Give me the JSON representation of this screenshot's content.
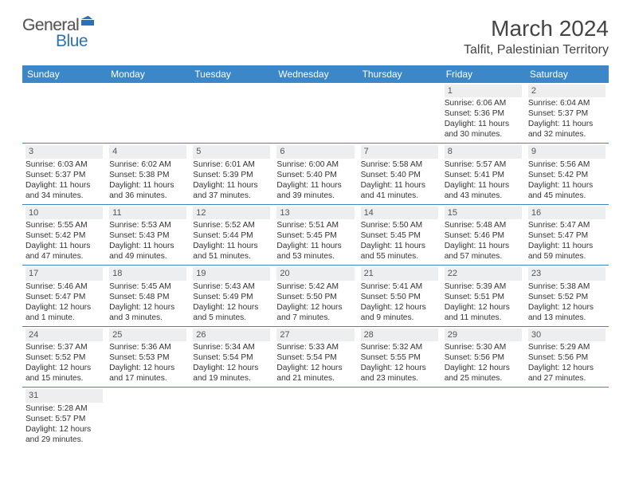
{
  "logo": {
    "text1": "General",
    "text2": "Blue"
  },
  "title": "March 2024",
  "location": "Talfit, Palestinian Territory",
  "headers": [
    "Sunday",
    "Monday",
    "Tuesday",
    "Wednesday",
    "Thursday",
    "Friday",
    "Saturday"
  ],
  "colors": {
    "header_bg": "#3b87c8",
    "header_text": "#ffffff",
    "daynum_bg": "#eceeef",
    "border": "#3b87c8",
    "logo_blue": "#2a72b5",
    "logo_gray": "#5a5a5a"
  },
  "weeks": [
    [
      null,
      null,
      null,
      null,
      null,
      {
        "n": "1",
        "sr": "Sunrise: 6:06 AM",
        "ss": "Sunset: 5:36 PM",
        "dl": "Daylight: 11 hours and 30 minutes."
      },
      {
        "n": "2",
        "sr": "Sunrise: 6:04 AM",
        "ss": "Sunset: 5:37 PM",
        "dl": "Daylight: 11 hours and 32 minutes."
      }
    ],
    [
      {
        "n": "3",
        "sr": "Sunrise: 6:03 AM",
        "ss": "Sunset: 5:37 PM",
        "dl": "Daylight: 11 hours and 34 minutes."
      },
      {
        "n": "4",
        "sr": "Sunrise: 6:02 AM",
        "ss": "Sunset: 5:38 PM",
        "dl": "Daylight: 11 hours and 36 minutes."
      },
      {
        "n": "5",
        "sr": "Sunrise: 6:01 AM",
        "ss": "Sunset: 5:39 PM",
        "dl": "Daylight: 11 hours and 37 minutes."
      },
      {
        "n": "6",
        "sr": "Sunrise: 6:00 AM",
        "ss": "Sunset: 5:40 PM",
        "dl": "Daylight: 11 hours and 39 minutes."
      },
      {
        "n": "7",
        "sr": "Sunrise: 5:58 AM",
        "ss": "Sunset: 5:40 PM",
        "dl": "Daylight: 11 hours and 41 minutes."
      },
      {
        "n": "8",
        "sr": "Sunrise: 5:57 AM",
        "ss": "Sunset: 5:41 PM",
        "dl": "Daylight: 11 hours and 43 minutes."
      },
      {
        "n": "9",
        "sr": "Sunrise: 5:56 AM",
        "ss": "Sunset: 5:42 PM",
        "dl": "Daylight: 11 hours and 45 minutes."
      }
    ],
    [
      {
        "n": "10",
        "sr": "Sunrise: 5:55 AM",
        "ss": "Sunset: 5:42 PM",
        "dl": "Daylight: 11 hours and 47 minutes."
      },
      {
        "n": "11",
        "sr": "Sunrise: 5:53 AM",
        "ss": "Sunset: 5:43 PM",
        "dl": "Daylight: 11 hours and 49 minutes."
      },
      {
        "n": "12",
        "sr": "Sunrise: 5:52 AM",
        "ss": "Sunset: 5:44 PM",
        "dl": "Daylight: 11 hours and 51 minutes."
      },
      {
        "n": "13",
        "sr": "Sunrise: 5:51 AM",
        "ss": "Sunset: 5:45 PM",
        "dl": "Daylight: 11 hours and 53 minutes."
      },
      {
        "n": "14",
        "sr": "Sunrise: 5:50 AM",
        "ss": "Sunset: 5:45 PM",
        "dl": "Daylight: 11 hours and 55 minutes."
      },
      {
        "n": "15",
        "sr": "Sunrise: 5:48 AM",
        "ss": "Sunset: 5:46 PM",
        "dl": "Daylight: 11 hours and 57 minutes."
      },
      {
        "n": "16",
        "sr": "Sunrise: 5:47 AM",
        "ss": "Sunset: 5:47 PM",
        "dl": "Daylight: 11 hours and 59 minutes."
      }
    ],
    [
      {
        "n": "17",
        "sr": "Sunrise: 5:46 AM",
        "ss": "Sunset: 5:47 PM",
        "dl": "Daylight: 12 hours and 1 minute."
      },
      {
        "n": "18",
        "sr": "Sunrise: 5:45 AM",
        "ss": "Sunset: 5:48 PM",
        "dl": "Daylight: 12 hours and 3 minutes."
      },
      {
        "n": "19",
        "sr": "Sunrise: 5:43 AM",
        "ss": "Sunset: 5:49 PM",
        "dl": "Daylight: 12 hours and 5 minutes."
      },
      {
        "n": "20",
        "sr": "Sunrise: 5:42 AM",
        "ss": "Sunset: 5:50 PM",
        "dl": "Daylight: 12 hours and 7 minutes."
      },
      {
        "n": "21",
        "sr": "Sunrise: 5:41 AM",
        "ss": "Sunset: 5:50 PM",
        "dl": "Daylight: 12 hours and 9 minutes."
      },
      {
        "n": "22",
        "sr": "Sunrise: 5:39 AM",
        "ss": "Sunset: 5:51 PM",
        "dl": "Daylight: 12 hours and 11 minutes."
      },
      {
        "n": "23",
        "sr": "Sunrise: 5:38 AM",
        "ss": "Sunset: 5:52 PM",
        "dl": "Daylight: 12 hours and 13 minutes."
      }
    ],
    [
      {
        "n": "24",
        "sr": "Sunrise: 5:37 AM",
        "ss": "Sunset: 5:52 PM",
        "dl": "Daylight: 12 hours and 15 minutes."
      },
      {
        "n": "25",
        "sr": "Sunrise: 5:36 AM",
        "ss": "Sunset: 5:53 PM",
        "dl": "Daylight: 12 hours and 17 minutes."
      },
      {
        "n": "26",
        "sr": "Sunrise: 5:34 AM",
        "ss": "Sunset: 5:54 PM",
        "dl": "Daylight: 12 hours and 19 minutes."
      },
      {
        "n": "27",
        "sr": "Sunrise: 5:33 AM",
        "ss": "Sunset: 5:54 PM",
        "dl": "Daylight: 12 hours and 21 minutes."
      },
      {
        "n": "28",
        "sr": "Sunrise: 5:32 AM",
        "ss": "Sunset: 5:55 PM",
        "dl": "Daylight: 12 hours and 23 minutes."
      },
      {
        "n": "29",
        "sr": "Sunrise: 5:30 AM",
        "ss": "Sunset: 5:56 PM",
        "dl": "Daylight: 12 hours and 25 minutes."
      },
      {
        "n": "30",
        "sr": "Sunrise: 5:29 AM",
        "ss": "Sunset: 5:56 PM",
        "dl": "Daylight: 12 hours and 27 minutes."
      }
    ],
    [
      {
        "n": "31",
        "sr": "Sunrise: 5:28 AM",
        "ss": "Sunset: 5:57 PM",
        "dl": "Daylight: 12 hours and 29 minutes."
      },
      null,
      null,
      null,
      null,
      null,
      null
    ]
  ]
}
